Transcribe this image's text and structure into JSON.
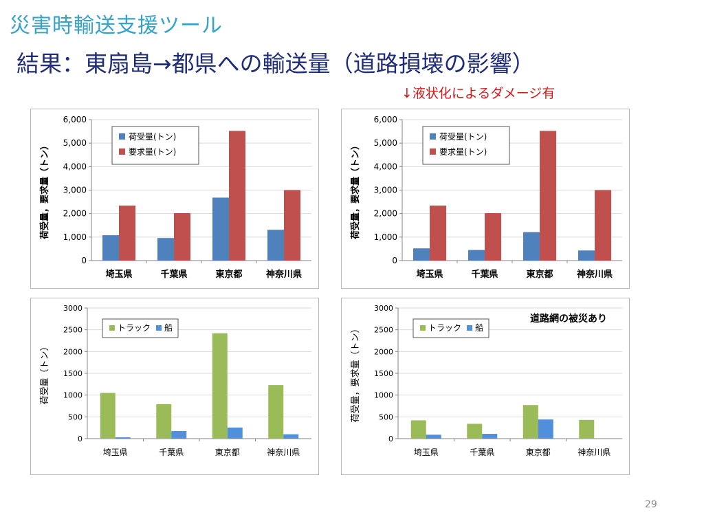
{
  "header": {
    "app_title": "災害時輸送支援ツール",
    "slide_title": "結果：東扇島→都県への輸送量（道路損壊の影響）",
    "note": "↓液状化によるダメージ有",
    "page_number": "29"
  },
  "colors": {
    "blue": "#4f81bd",
    "red": "#c0504d",
    "green": "#9bbb59",
    "blue_light": "#4f8fdc",
    "axis": "#868686",
    "grid": "#d9d9d9",
    "text": "#000000"
  },
  "chart_data": [
    {
      "type": "bar",
      "categories": [
        "埼玉県",
        "千葉県",
        "東京都",
        "神奈川県"
      ],
      "series": [
        {
          "name": "荷受量(トン)",
          "values": [
            1080,
            960,
            2680,
            1310
          ]
        },
        {
          "name": "要求量(トン)",
          "values": [
            2340,
            2020,
            5520,
            3000
          ]
        }
      ],
      "title": "",
      "xlabel": "",
      "ylabel": "荷受量，要求量（トン）",
      "ylim": [
        0,
        6000
      ],
      "yticks": [
        "0",
        "1,000",
        "2,000",
        "3,000",
        "4,000",
        "5,000",
        "6,000"
      ],
      "grid": true,
      "legend": "top-left"
    },
    {
      "type": "bar",
      "categories": [
        "埼玉県",
        "千葉県",
        "東京都",
        "神奈川県"
      ],
      "series": [
        {
          "name": "荷受量(トン)",
          "values": [
            520,
            450,
            1210,
            430
          ]
        },
        {
          "name": "要求量(トン)",
          "values": [
            2340,
            2020,
            5520,
            3000
          ]
        }
      ],
      "title": "",
      "xlabel": "",
      "ylabel": "荷受量，要求量（トン）",
      "ylim": [
        0,
        6000
      ],
      "yticks": [
        "0",
        "1,000",
        "2,000",
        "3,000",
        "4,000",
        "5,000",
        "6,000"
      ],
      "grid": true,
      "legend": "top-left"
    },
    {
      "type": "bar",
      "categories": [
        "埼玉県",
        "千葉県",
        "東京都",
        "神奈川県"
      ],
      "series": [
        {
          "name": "トラック",
          "values": [
            1050,
            790,
            2420,
            1230
          ]
        },
        {
          "name": "船",
          "values": [
            30,
            175,
            255,
            100
          ]
        }
      ],
      "title": "",
      "xlabel": "",
      "ylabel": "荷受量（トン）",
      "ylim": [
        0,
        3000
      ],
      "yticks": [
        "0",
        "500",
        "1000",
        "1500",
        "2000",
        "2500",
        "3000"
      ],
      "grid": true,
      "legend": "top-left"
    },
    {
      "type": "bar",
      "categories": [
        "埼玉県",
        "千葉県",
        "東京都",
        "神奈川県"
      ],
      "series": [
        {
          "name": "トラック",
          "values": [
            420,
            340,
            770,
            430
          ]
        },
        {
          "name": "船",
          "values": [
            90,
            110,
            440,
            0
          ]
        }
      ],
      "title": "",
      "annotation": "道路網の被災あり",
      "xlabel": "",
      "ylabel": "荷受量，要求量（トン）",
      "ylim": [
        0,
        3000
      ],
      "yticks": [
        "0",
        "500",
        "1000",
        "1500",
        "2000",
        "2500",
        "3000"
      ],
      "grid": true,
      "legend": "top-left"
    }
  ]
}
